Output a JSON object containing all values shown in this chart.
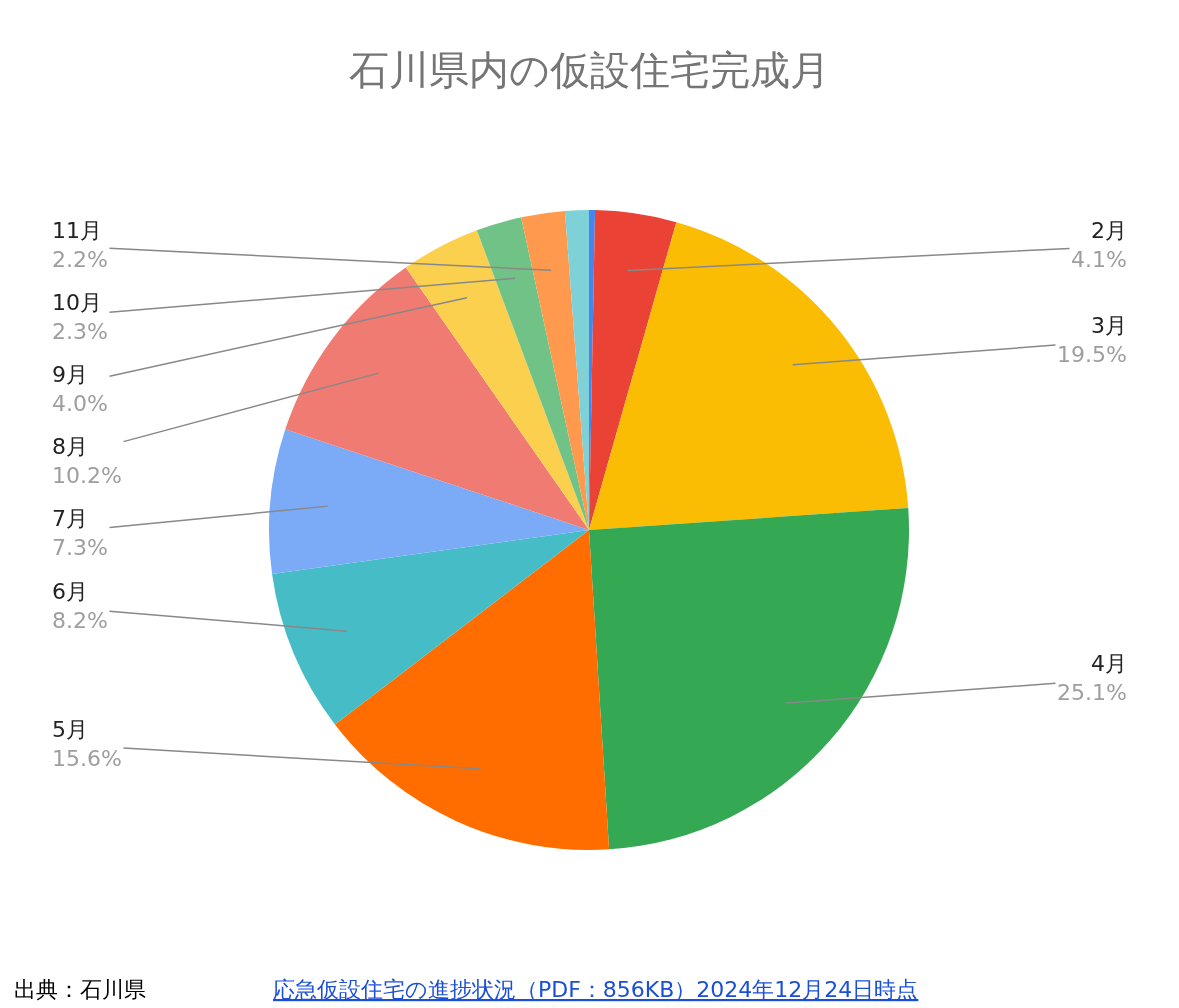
{
  "chart_data": {
    "type": "pie",
    "title": "石川県内の仮設住宅完成月",
    "categories": [
      null,
      "2月",
      "3月",
      "4月",
      "5月",
      "6月",
      "7月",
      "8月",
      "9月",
      "10月",
      "11月",
      null
    ],
    "values": [
      0.3,
      4.1,
      19.5,
      25.1,
      15.6,
      8.2,
      7.3,
      10.2,
      4.0,
      2.3,
      2.2,
      1.2
    ],
    "value_labels": [
      null,
      "4.1%",
      "19.5%",
      "25.1%",
      "15.6%",
      "8.2%",
      "7.3%",
      "10.2%",
      "4.0%",
      "2.3%",
      "2.2%",
      null
    ],
    "colors": [
      "#4285f4",
      "#ea4335",
      "#fbbc04",
      "#34a853",
      "#ff6d01",
      "#46bdc6",
      "#7baaf7",
      "#f07b72",
      "#fcd04f",
      "#71c287",
      "#ff994d",
      "#7ed1d7"
    ],
    "legend": false,
    "annotations": [
      "出典：石川県",
      "応急仮設住宅の進捗状況（PDF：856KB）2024年12月24日時点"
    ]
  }
}
